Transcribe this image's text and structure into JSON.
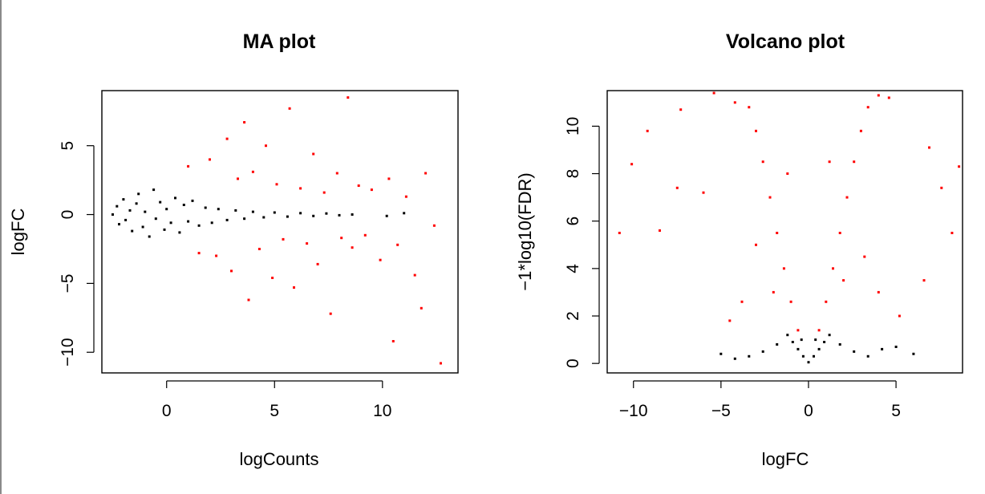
{
  "chart_data": [
    {
      "type": "scatter",
      "title": "MA plot",
      "xlabel": "logCounts",
      "ylabel": "logFC",
      "xlim": [
        -3,
        13.5
      ],
      "ylim": [
        -11.5,
        9
      ],
      "xticks": [
        0,
        5,
        10
      ],
      "yticks": [
        -10,
        -5,
        0,
        5
      ],
      "grid": false,
      "series": [
        {
          "color": "#000000",
          "points": [
            [
              -2.5,
              0.0
            ],
            [
              -2.3,
              0.6
            ],
            [
              -2.2,
              -0.7
            ],
            [
              -2.0,
              1.1
            ],
            [
              -1.9,
              -0.4
            ],
            [
              -1.7,
              0.3
            ],
            [
              -1.6,
              -1.2
            ],
            [
              -1.4,
              0.8
            ],
            [
              -1.3,
              1.5
            ],
            [
              -1.1,
              -0.9
            ],
            [
              -1.0,
              0.2
            ],
            [
              -0.8,
              -1.6
            ],
            [
              -0.6,
              1.8
            ],
            [
              -0.5,
              -0.3
            ],
            [
              -0.3,
              0.9
            ],
            [
              -0.1,
              -1.1
            ],
            [
              0.0,
              0.4
            ],
            [
              0.2,
              -0.6
            ],
            [
              0.4,
              1.2
            ],
            [
              0.6,
              -1.3
            ],
            [
              0.8,
              0.7
            ],
            [
              1.0,
              -0.5
            ],
            [
              1.2,
              1.0
            ],
            [
              1.5,
              -0.8
            ],
            [
              1.8,
              0.5
            ],
            [
              2.1,
              -0.6
            ],
            [
              2.4,
              0.4
            ],
            [
              2.8,
              -0.4
            ],
            [
              3.2,
              0.3
            ],
            [
              3.6,
              -0.3
            ],
            [
              4.0,
              0.2
            ],
            [
              4.5,
              -0.2
            ],
            [
              5.0,
              0.15
            ],
            [
              5.6,
              -0.15
            ],
            [
              6.2,
              0.1
            ],
            [
              6.8,
              -0.1
            ],
            [
              7.4,
              0.08
            ],
            [
              8.0,
              -0.05
            ],
            [
              8.6,
              0.0
            ],
            [
              10.2,
              -0.1
            ],
            [
              11.0,
              0.1
            ]
          ]
        },
        {
          "color": "#ff0000",
          "points": [
            [
              1.0,
              3.5
            ],
            [
              1.5,
              -2.8
            ],
            [
              2.0,
              4.0
            ],
            [
              2.3,
              -3.0
            ],
            [
              2.8,
              5.5
            ],
            [
              3.0,
              -4.1
            ],
            [
              3.3,
              2.6
            ],
            [
              3.6,
              6.7
            ],
            [
              3.8,
              -6.2
            ],
            [
              4.0,
              3.1
            ],
            [
              4.3,
              -2.5
            ],
            [
              4.6,
              5.0
            ],
            [
              4.9,
              -4.6
            ],
            [
              5.1,
              2.2
            ],
            [
              5.4,
              -1.8
            ],
            [
              5.7,
              7.7
            ],
            [
              5.9,
              -5.3
            ],
            [
              6.2,
              1.9
            ],
            [
              6.5,
              -2.1
            ],
            [
              6.8,
              4.4
            ],
            [
              7.0,
              -3.6
            ],
            [
              7.3,
              1.6
            ],
            [
              7.6,
              -7.2
            ],
            [
              7.9,
              3.0
            ],
            [
              8.1,
              -1.7
            ],
            [
              8.4,
              8.5
            ],
            [
              8.6,
              -2.4
            ],
            [
              8.9,
              2.1
            ],
            [
              9.2,
              -1.5
            ],
            [
              9.5,
              1.8
            ],
            [
              9.9,
              -3.3
            ],
            [
              10.3,
              2.6
            ],
            [
              10.7,
              -2.2
            ],
            [
              11.1,
              1.3
            ],
            [
              11.5,
              -4.4
            ],
            [
              12.0,
              3.0
            ],
            [
              12.4,
              -0.8
            ],
            [
              12.7,
              -10.8
            ],
            [
              11.8,
              -6.8
            ],
            [
              10.5,
              -9.2
            ]
          ]
        }
      ]
    },
    {
      "type": "scatter",
      "title": "Volcano plot",
      "xlabel": "logFC",
      "ylabel": "−1*log10(FDR)",
      "xlim": [
        -11.5,
        8.8
      ],
      "ylim": [
        -0.4,
        11.5
      ],
      "xticks": [
        -10,
        -5,
        0,
        5
      ],
      "yticks": [
        0,
        2,
        4,
        6,
        8,
        10
      ],
      "grid": false,
      "series": [
        {
          "color": "#000000",
          "points": [
            [
              0.0,
              0.05
            ],
            [
              -0.3,
              0.3
            ],
            [
              0.3,
              0.3
            ],
            [
              -0.6,
              0.6
            ],
            [
              0.6,
              0.6
            ],
            [
              -0.9,
              0.9
            ],
            [
              0.9,
              0.9
            ],
            [
              -1.2,
              1.2
            ],
            [
              1.2,
              1.2
            ],
            [
              -0.4,
              1.0
            ],
            [
              0.4,
              1.0
            ],
            [
              -1.8,
              0.8
            ],
            [
              1.8,
              0.8
            ],
            [
              -2.6,
              0.5
            ],
            [
              2.6,
              0.5
            ],
            [
              -3.4,
              0.3
            ],
            [
              3.4,
              0.3
            ],
            [
              -4.2,
              0.2
            ],
            [
              4.2,
              0.6
            ],
            [
              -5.0,
              0.4
            ],
            [
              5.0,
              0.7
            ],
            [
              6.0,
              0.4
            ]
          ]
        },
        {
          "color": "#ff0000",
          "points": [
            [
              -0.6,
              1.4
            ],
            [
              0.6,
              1.4
            ],
            [
              -1.0,
              2.6
            ],
            [
              1.0,
              2.6
            ],
            [
              -1.4,
              4.0
            ],
            [
              1.4,
              4.0
            ],
            [
              -1.8,
              5.5
            ],
            [
              1.8,
              5.5
            ],
            [
              -2.2,
              7.0
            ],
            [
              2.2,
              7.0
            ],
            [
              -2.6,
              8.5
            ],
            [
              2.6,
              8.5
            ],
            [
              -3.0,
              9.8
            ],
            [
              3.0,
              9.8
            ],
            [
              -3.4,
              10.8
            ],
            [
              3.4,
              10.8
            ],
            [
              -4.2,
              11.0
            ],
            [
              4.0,
              11.3
            ],
            [
              -5.4,
              11.4
            ],
            [
              4.6,
              11.2
            ],
            [
              -1.2,
              8.0
            ],
            [
              1.2,
              8.5
            ],
            [
              -2.0,
              3.0
            ],
            [
              2.0,
              3.5
            ],
            [
              -3.0,
              5.0
            ],
            [
              3.2,
              4.5
            ],
            [
              -3.8,
              2.6
            ],
            [
              4.0,
              3.0
            ],
            [
              -4.5,
              1.8
            ],
            [
              5.2,
              2.0
            ],
            [
              -6.0,
              7.2
            ],
            [
              -7.3,
              10.7
            ],
            [
              -7.5,
              7.4
            ],
            [
              -8.5,
              5.6
            ],
            [
              -9.2,
              9.8
            ],
            [
              -10.1,
              8.4
            ],
            [
              -10.8,
              5.5
            ],
            [
              6.9,
              9.1
            ],
            [
              7.6,
              7.4
            ],
            [
              8.2,
              5.5
            ],
            [
              8.6,
              8.3
            ],
            [
              6.6,
              3.5
            ]
          ]
        }
      ]
    }
  ]
}
